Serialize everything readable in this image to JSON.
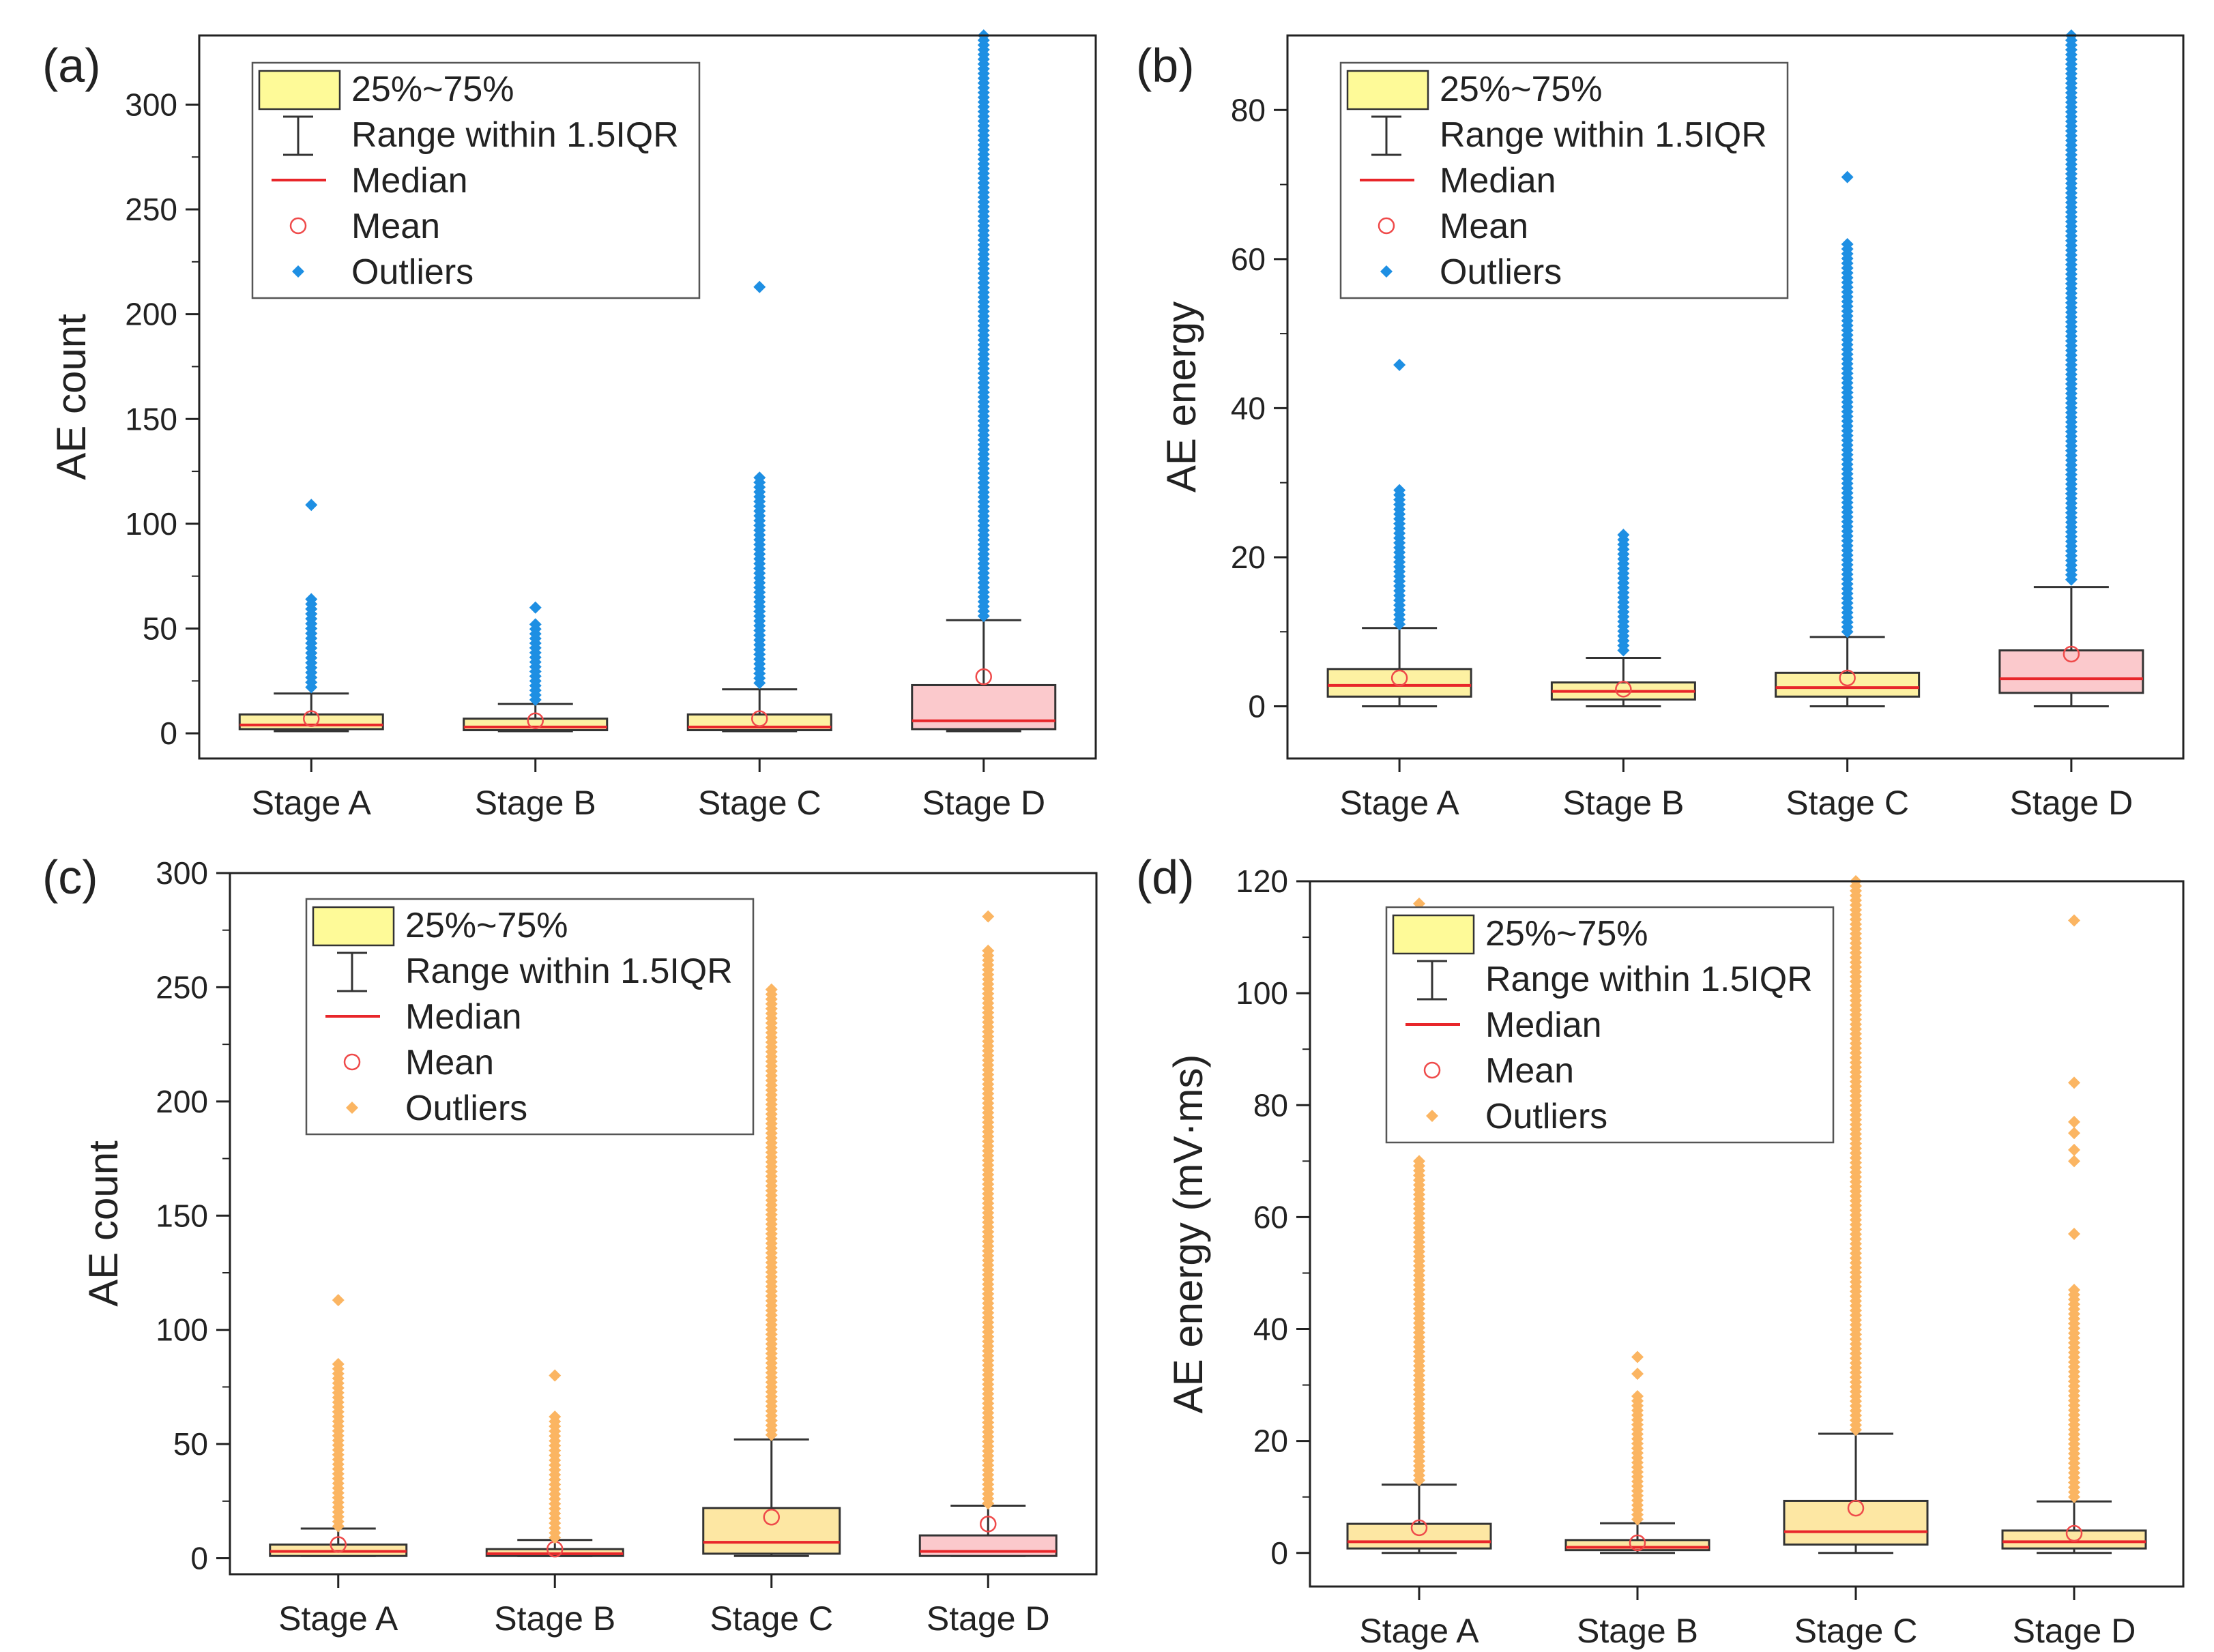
{
  "chart_data": [
    {
      "panel": "(a)",
      "type": "box",
      "ylabel": "AE count",
      "ylim": [
        -12,
        333
      ],
      "yticks": [
        0,
        50,
        100,
        150,
        200,
        250,
        300
      ],
      "categories": [
        "Stage A",
        "Stage B",
        "Stage C",
        "Stage D"
      ],
      "boxes": [
        {
          "q1": 2,
          "median": 4,
          "q3": 9,
          "whisker_low": 1,
          "whisker_high": 19,
          "mean": 7,
          "outlier_min": 22,
          "outlier_max": 64,
          "outliers_extra": [
            109
          ]
        },
        {
          "q1": 1.5,
          "median": 3,
          "q3": 7,
          "whisker_low": 1,
          "whisker_high": 14,
          "mean": 6,
          "outlier_min": 16,
          "outlier_max": 52,
          "outliers_extra": [
            60
          ]
        },
        {
          "q1": 1.5,
          "median": 3,
          "q3": 9,
          "whisker_low": 1,
          "whisker_high": 21,
          "mean": 7,
          "outlier_min": 24,
          "outlier_max": 122,
          "outliers_extra": [
            213
          ]
        },
        {
          "q1": 2,
          "median": 6,
          "q3": 23,
          "whisker_low": 1,
          "whisker_high": 54,
          "mean": 27,
          "outlier_min": 56,
          "outlier_max": 333,
          "outliers_extra": []
        }
      ],
      "box_colors": [
        "#fdf1a2",
        "#fdf1a2",
        "#fdf1a2",
        "#fbc9cc"
      ],
      "outlier_color": "#1e8fe3",
      "legend": {
        "box": "25%~75%",
        "range": "Range within 1.5IQR",
        "median": "Median",
        "mean": "Mean",
        "outliers": "Outliers"
      }
    },
    {
      "panel": "(b)",
      "type": "box",
      "ylabel": "AE energy",
      "ylim": [
        -7,
        90
      ],
      "yticks": [
        0,
        20,
        40,
        60,
        80
      ],
      "categories": [
        "Stage A",
        "Stage B",
        "Stage C",
        "Stage D"
      ],
      "boxes": [
        {
          "q1": 1.3,
          "median": 2.8,
          "q3": 5,
          "whisker_low": 0,
          "whisker_high": 10.5,
          "mean": 3.8,
          "outlier_min": 11,
          "outlier_max": 29,
          "outliers_extra": [
            45.8
          ]
        },
        {
          "q1": 0.9,
          "median": 2,
          "q3": 3.2,
          "whisker_low": 0,
          "whisker_high": 6.5,
          "mean": 2.3,
          "outlier_min": 7.5,
          "outlier_max": 23,
          "outliers_extra": []
        },
        {
          "q1": 1.3,
          "median": 2.5,
          "q3": 4.5,
          "whisker_low": 0,
          "whisker_high": 9.3,
          "mean": 3.8,
          "outlier_min": 10,
          "outlier_max": 62,
          "outliers_extra": [
            71
          ]
        },
        {
          "q1": 1.8,
          "median": 3.7,
          "q3": 7.5,
          "whisker_low": 0,
          "whisker_high": 16,
          "mean": 7,
          "outlier_min": 17,
          "outlier_max": 90,
          "outliers_extra": []
        }
      ],
      "box_colors": [
        "#fdf1a2",
        "#fdf1a2",
        "#fdf1a2",
        "#fbc9cc"
      ],
      "outlier_color": "#1e8fe3",
      "legend": {
        "box": "25%~75%",
        "range": "Range within 1.5IQR",
        "median": "Median",
        "mean": "Mean",
        "outliers": "Outliers"
      }
    },
    {
      "panel": "(c)",
      "type": "box",
      "ylabel": "AE count",
      "ylim": [
        -7,
        300
      ],
      "yticks": [
        0,
        50,
        100,
        150,
        200,
        250,
        300
      ],
      "categories": [
        "Stage A",
        "Stage B",
        "Stage C",
        "Stage D"
      ],
      "boxes": [
        {
          "q1": 1,
          "median": 3,
          "q3": 6,
          "whisker_low": 1,
          "whisker_high": 13,
          "mean": 6,
          "outlier_min": 14,
          "outlier_max": 85,
          "outliers_extra": [
            113
          ]
        },
        {
          "q1": 1,
          "median": 2,
          "q3": 4,
          "whisker_low": 1,
          "whisker_high": 8,
          "mean": 4,
          "outlier_min": 9,
          "outlier_max": 62,
          "outliers_extra": [
            80
          ]
        },
        {
          "q1": 2,
          "median": 7,
          "q3": 22,
          "whisker_low": 1,
          "whisker_high": 52,
          "mean": 18,
          "outlier_min": 54,
          "outlier_max": 249,
          "outliers_extra": []
        },
        {
          "q1": 1,
          "median": 3,
          "q3": 10,
          "whisker_low": 1,
          "whisker_high": 23,
          "mean": 15,
          "outlier_min": 24,
          "outlier_max": 266,
          "outliers_extra": [
            281
          ]
        }
      ],
      "box_colors": [
        "#fde7a3",
        "#fde7a3",
        "#fde7a3",
        "#fbc9cc"
      ],
      "outlier_color": "#fbb562",
      "legend": {
        "box": "25%~75%",
        "range": "Range within 1.5IQR",
        "median": "Median",
        "mean": "Mean",
        "outliers": "Outliers"
      }
    },
    {
      "panel": "(d)",
      "type": "box",
      "ylabel": "AE energy (mV·ms)",
      "ylim": [
        -6,
        120
      ],
      "yticks": [
        0,
        20,
        40,
        60,
        80,
        100,
        120
      ],
      "categories": [
        "Stage A",
        "Stage B",
        "Stage C",
        "Stage D"
      ],
      "boxes": [
        {
          "q1": 0.8,
          "median": 2,
          "q3": 5.2,
          "whisker_low": 0,
          "whisker_high": 12.2,
          "mean": 4.5,
          "outlier_min": 13,
          "outlier_max": 70,
          "outliers_extra": [
            116
          ]
        },
        {
          "q1": 0.5,
          "median": 1,
          "q3": 2.3,
          "whisker_low": 0,
          "whisker_high": 5.3,
          "mean": 1.8,
          "outlier_min": 6,
          "outlier_max": 28,
          "outliers_extra": [
            32,
            35
          ]
        },
        {
          "q1": 1.5,
          "median": 3.8,
          "q3": 9.3,
          "whisker_low": 0,
          "whisker_high": 21.3,
          "mean": 8,
          "outlier_min": 22,
          "outlier_max": 120,
          "outliers_extra": []
        },
        {
          "q1": 0.8,
          "median": 2,
          "q3": 4,
          "whisker_low": 0,
          "whisker_high": 9.2,
          "mean": 3.5,
          "outlier_min": 10,
          "outlier_max": 47,
          "outliers_extra": [
            57,
            70,
            72,
            75,
            77,
            84,
            113
          ]
        }
      ],
      "box_colors": [
        "#fde7a3",
        "#fde7a3",
        "#fde7a3",
        "#fde7a3"
      ],
      "outlier_color": "#fbb562",
      "legend": {
        "box": "25%~75%",
        "range": "Range within 1.5IQR",
        "median": "Median",
        "mean": "Mean",
        "outliers": "Outliers"
      }
    }
  ]
}
